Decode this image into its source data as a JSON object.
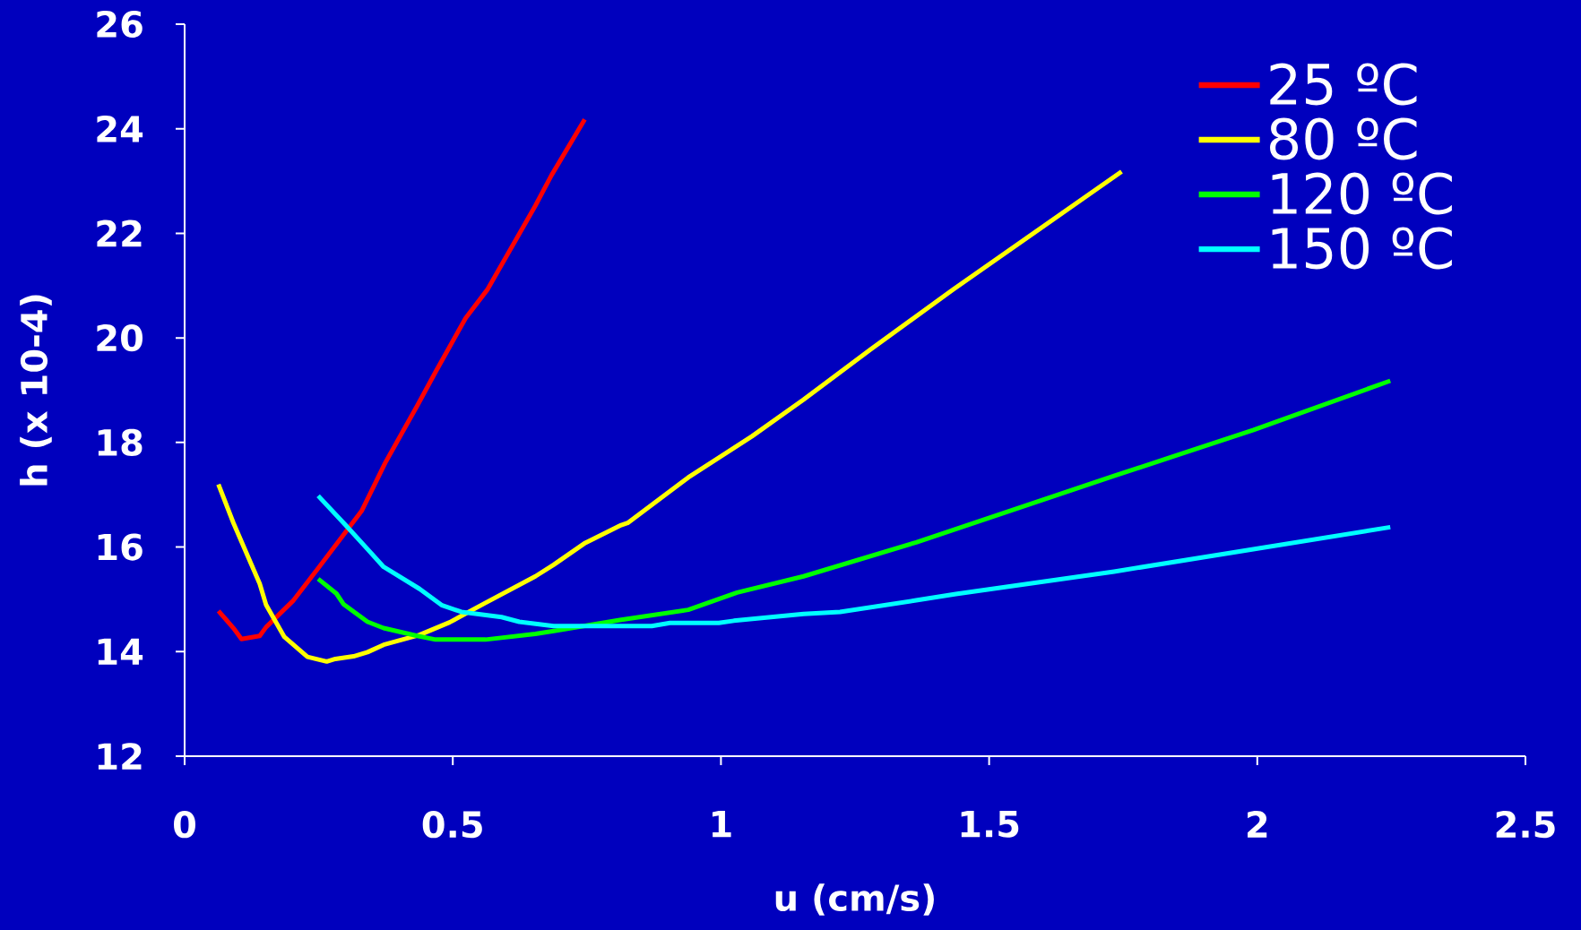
{
  "chart_data": {
    "type": "line",
    "xlabel": "u (cm/s)",
    "ylabel": "h (x 10-4)",
    "xlim": [
      0,
      2.5
    ],
    "ylim": [
      12,
      26
    ],
    "xticks": [
      0,
      0.5,
      1,
      1.5,
      2,
      2.5
    ],
    "yticks": [
      12,
      14,
      16,
      18,
      20,
      22,
      24,
      26
    ],
    "legend": "top right",
    "marker": "none",
    "line_style": "solid",
    "series": [
      {
        "name": "25 ºC",
        "color": "#ff0000",
        "x": [
          0.063,
          0.091,
          0.106,
          0.14,
          0.152,
          0.203,
          0.248,
          0.33,
          0.374,
          0.434,
          0.468,
          0.524,
          0.565,
          0.654,
          0.684,
          0.746
        ],
        "values": [
          14.78,
          14.45,
          14.24,
          14.3,
          14.47,
          14.98,
          15.58,
          16.69,
          17.61,
          18.71,
          19.35,
          20.38,
          20.93,
          22.53,
          23.11,
          24.18
        ]
      },
      {
        "name": "80 ºC",
        "color": "#ffff00",
        "x": [
          0.063,
          0.091,
          0.14,
          0.152,
          0.186,
          0.229,
          0.265,
          0.281,
          0.315,
          0.341,
          0.371,
          0.438,
          0.494,
          0.557,
          0.654,
          0.688,
          0.747,
          0.814,
          0.826,
          0.939,
          1.058,
          1.154,
          1.279,
          1.432,
          1.747
        ],
        "values": [
          17.2,
          16.46,
          15.3,
          14.89,
          14.28,
          13.9,
          13.81,
          13.86,
          13.91,
          13.99,
          14.13,
          14.32,
          14.56,
          14.91,
          15.44,
          15.66,
          16.08,
          16.42,
          16.46,
          17.33,
          18.12,
          18.82,
          19.78,
          20.92,
          23.18
        ]
      },
      {
        "name": "120 ºC",
        "color": "#00ff00",
        "x": [
          0.249,
          0.283,
          0.296,
          0.341,
          0.371,
          0.434,
          0.468,
          0.561,
          0.654,
          0.691,
          0.814,
          0.939,
          1.03,
          1.154,
          1.364,
          1.733,
          1.993,
          2.248
        ],
        "values": [
          15.39,
          15.11,
          14.91,
          14.57,
          14.45,
          14.3,
          14.23,
          14.23,
          14.34,
          14.4,
          14.61,
          14.8,
          15.13,
          15.44,
          16.09,
          17.36,
          18.24,
          19.18
        ]
      },
      {
        "name": "150 ºC",
        "color": "#00ffff",
        "x": [
          0.249,
          0.3,
          0.341,
          0.371,
          0.438,
          0.479,
          0.516,
          0.591,
          0.624,
          0.688,
          0.871,
          0.905,
          0.996,
          1.024,
          1.154,
          1.222,
          1.364,
          1.438,
          1.733,
          2.248
        ],
        "values": [
          16.98,
          16.42,
          15.96,
          15.62,
          15.2,
          14.89,
          14.76,
          14.66,
          14.57,
          14.49,
          14.49,
          14.55,
          14.55,
          14.59,
          14.72,
          14.76,
          14.98,
          15.1,
          15.53,
          16.38
        ]
      }
    ]
  }
}
